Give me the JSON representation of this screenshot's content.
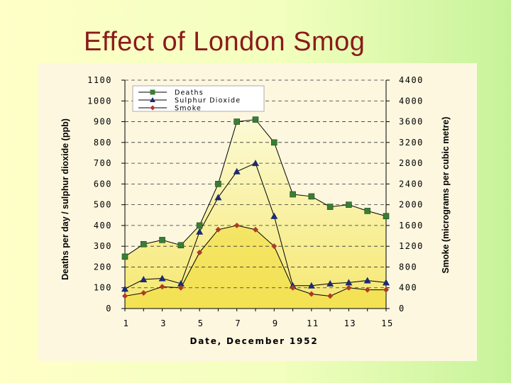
{
  "slide": {
    "title": "Effect of London Smog"
  },
  "chart_data": {
    "type": "line",
    "title": "Effect of London Smog",
    "xlabel": "Date, December 1952",
    "ylabel_left": "Deaths per day / sulphur dioxide (ppb)",
    "ylabel_right": "Smoke (micrograms per cubic metre)",
    "x": [
      1,
      2,
      3,
      4,
      5,
      6,
      7,
      8,
      9,
      10,
      11,
      12,
      13,
      14,
      15
    ],
    "x_ticks": [
      "1",
      "3",
      "5",
      "7",
      "9",
      "11",
      "13",
      "15"
    ],
    "ylim_left": [
      0,
      1100
    ],
    "y_ticks_left": [
      "0",
      "100",
      "200",
      "300",
      "400",
      "500",
      "600",
      "700",
      "800",
      "900",
      "1000",
      "1100"
    ],
    "ylim_right": [
      0,
      4400
    ],
    "y_ticks_right": [
      "0",
      "400",
      "800",
      "1200",
      "1600",
      "2000",
      "2400",
      "2800",
      "3200",
      "3600",
      "4000",
      "4400"
    ],
    "grid": true,
    "legend_position": "top-left",
    "series": [
      {
        "name": "Deaths",
        "axis": "left",
        "marker": "square",
        "color": "#3a7d35",
        "values": [
          250,
          310,
          330,
          305,
          400,
          600,
          900,
          910,
          800,
          550,
          540,
          490,
          500,
          470,
          445
        ]
      },
      {
        "name": "Sulphur Dioxide",
        "axis": "left",
        "marker": "triangle",
        "color": "#1c2a73",
        "values": [
          95,
          140,
          145,
          120,
          370,
          535,
          660,
          700,
          445,
          110,
          110,
          120,
          125,
          135,
          125
        ]
      },
      {
        "name": "Smoke",
        "axis": "right",
        "marker": "diamond",
        "color": "#b03a22",
        "values": [
          240,
          300,
          420,
          400,
          1080,
          1520,
          1600,
          1520,
          1200,
          400,
          280,
          240,
          400,
          360,
          360
        ]
      }
    ],
    "fill": {
      "top_color": "#fcfbd2",
      "bottom_color": "#f3e24a"
    }
  }
}
